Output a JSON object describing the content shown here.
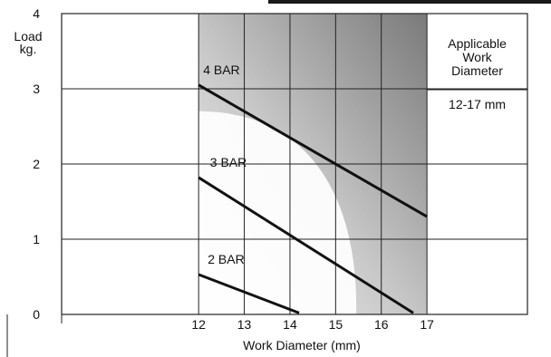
{
  "chart_data": {
    "type": "line",
    "xlabel": "Work Diameter (mm)",
    "ylabel": [
      "Load",
      "kg."
    ],
    "xlim": [
      9,
      19.2
    ],
    "ylim": [
      0,
      4
    ],
    "x_ticks": [
      12,
      13,
      14,
      15,
      16,
      17
    ],
    "y_ticks": [
      0,
      1,
      2,
      3,
      4
    ],
    "x_tick_labels": [
      "12",
      "13",
      "14",
      "15",
      "16",
      "17"
    ],
    "y_tick_labels": [
      "0",
      "1",
      "2",
      "3",
      "4"
    ],
    "grid": true,
    "series": [
      {
        "name": "4 BAR",
        "x": [
          12,
          17
        ],
        "y": [
          3.05,
          1.3
        ]
      },
      {
        "name": "3 BAR",
        "x": [
          12,
          16.7
        ],
        "y": [
          1.82,
          0.02
        ]
      },
      {
        "name": "2 BAR",
        "x": [
          12,
          14.2
        ],
        "y": [
          0.53,
          0.02
        ]
      }
    ],
    "shaded_region": {
      "x": [
        12,
        17
      ],
      "y": [
        0,
        4
      ]
    },
    "annotation": {
      "title_lines": [
        "Applicable",
        "Work",
        "Diameter"
      ],
      "value": "12-17 mm"
    },
    "colors": {
      "line": "#111111",
      "shade_dark": "#7a7a7a",
      "shade_light": "#ffffff"
    }
  }
}
